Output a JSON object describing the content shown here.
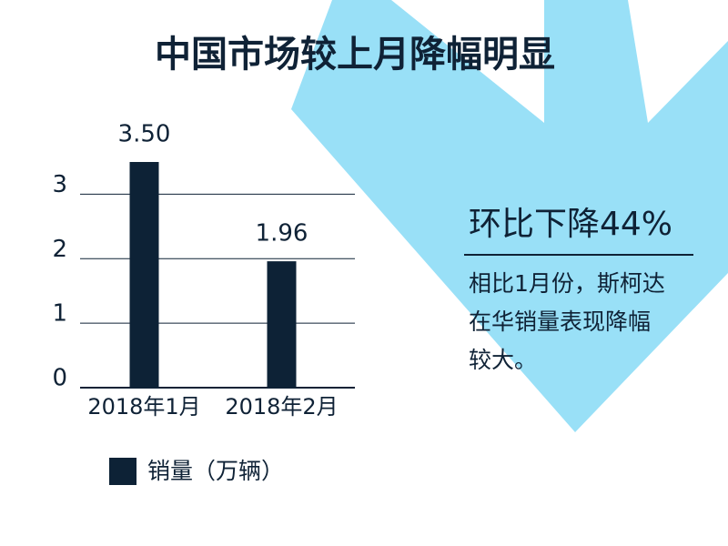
{
  "chart_data": {
    "type": "bar",
    "title": "中国市场较上月降幅明显",
    "categories": [
      "2018年1月",
      "2018年2月"
    ],
    "series": [
      {
        "name": "销量（万辆）",
        "color": "#0d2236",
        "values": [
          3.5,
          1.96
        ],
        "value_labels": [
          "3.50",
          "1.96"
        ]
      }
    ],
    "ylim": [
      0,
      3.5
    ],
    "yticks": [
      0,
      1,
      2,
      3
    ],
    "grid": true,
    "annotation": {
      "heading": "环比下降44%",
      "lines": [
        "相比1月份，斯柯达",
        "在华销量表现降幅",
        "较大。"
      ]
    }
  }
}
